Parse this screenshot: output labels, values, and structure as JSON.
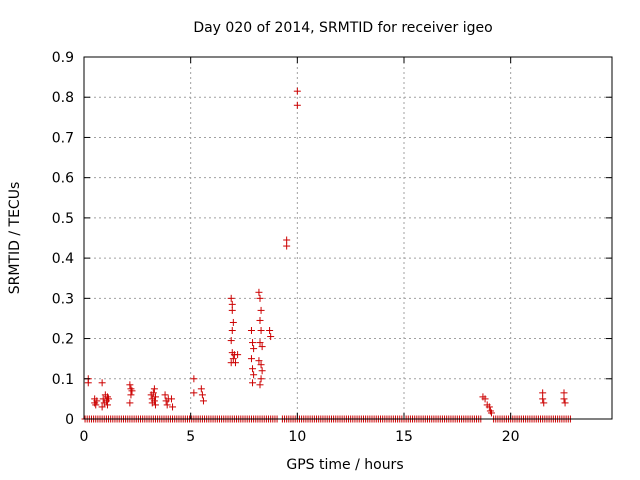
{
  "chart_data": {
    "type": "scatter",
    "title": "Day 020 of 2014, SRMTID for receiver igeo",
    "xlabel": "GPS time / hours",
    "ylabel": "SRMTID / TECUs",
    "xlim": [
      0,
      24.75
    ],
    "ylim": [
      0,
      0.9
    ],
    "xticks": [
      0,
      5,
      10,
      15,
      20
    ],
    "xtick_labels": [
      "0",
      "5",
      "10",
      "15",
      "20"
    ],
    "yticks": [
      0,
      0.1,
      0.2,
      0.3,
      0.4,
      0.5,
      0.6,
      0.7,
      0.8,
      0.9
    ],
    "ytick_labels": [
      "0",
      "0.1",
      "0.2",
      "0.3",
      "0.4",
      "0.5",
      "0.6",
      "0.7",
      "0.8",
      "0.9"
    ],
    "grid": true,
    "marker": "+",
    "color": "#cc0000",
    "zero_baseline_ranges": [
      [
        0.05,
        9.1
      ],
      [
        9.3,
        18.6
      ],
      [
        19.2,
        22.8
      ]
    ],
    "zero_baseline_step": 0.1,
    "series": [
      {
        "name": "SRMTID",
        "points": [
          [
            0.2,
            0.1
          ],
          [
            0.2,
            0.09
          ],
          [
            0.5,
            0.05
          ],
          [
            0.5,
            0.04
          ],
          [
            0.55,
            0.035
          ],
          [
            0.6,
            0.045
          ],
          [
            0.85,
            0.09
          ],
          [
            0.85,
            0.03
          ],
          [
            0.9,
            0.05
          ],
          [
            0.95,
            0.04
          ],
          [
            1.0,
            0.06
          ],
          [
            1.05,
            0.045
          ],
          [
            1.1,
            0.055
          ],
          [
            1.1,
            0.035
          ],
          [
            1.15,
            0.05
          ],
          [
            2.15,
            0.085
          ],
          [
            2.15,
            0.04
          ],
          [
            2.2,
            0.075
          ],
          [
            2.2,
            0.06
          ],
          [
            2.25,
            0.07
          ],
          [
            3.15,
            0.06
          ],
          [
            3.2,
            0.05
          ],
          [
            3.2,
            0.04
          ],
          [
            3.25,
            0.065
          ],
          [
            3.3,
            0.045
          ],
          [
            3.3,
            0.075
          ],
          [
            3.35,
            0.055
          ],
          [
            3.35,
            0.035
          ],
          [
            3.8,
            0.06
          ],
          [
            3.85,
            0.045
          ],
          [
            3.9,
            0.035
          ],
          [
            3.95,
            0.05
          ],
          [
            4.1,
            0.05
          ],
          [
            4.15,
            0.03
          ],
          [
            5.15,
            0.1
          ],
          [
            5.15,
            0.065
          ],
          [
            5.5,
            0.075
          ],
          [
            5.55,
            0.06
          ],
          [
            5.6,
            0.045
          ],
          [
            6.9,
            0.3
          ],
          [
            6.95,
            0.285
          ],
          [
            6.95,
            0.27
          ],
          [
            7.0,
            0.24
          ],
          [
            6.95,
            0.22
          ],
          [
            6.9,
            0.195
          ],
          [
            6.95,
            0.165
          ],
          [
            7.0,
            0.15
          ],
          [
            6.9,
            0.14
          ],
          [
            7.05,
            0.16
          ],
          [
            7.1,
            0.14
          ],
          [
            7.2,
            0.16
          ],
          [
            7.85,
            0.22
          ],
          [
            7.9,
            0.19
          ],
          [
            7.95,
            0.175
          ],
          [
            7.85,
            0.15
          ],
          [
            7.9,
            0.125
          ],
          [
            7.95,
            0.11
          ],
          [
            7.9,
            0.09
          ],
          [
            8.2,
            0.315
          ],
          [
            8.25,
            0.3
          ],
          [
            8.3,
            0.27
          ],
          [
            8.25,
            0.245
          ],
          [
            8.3,
            0.22
          ],
          [
            8.25,
            0.19
          ],
          [
            8.35,
            0.18
          ],
          [
            8.2,
            0.145
          ],
          [
            8.3,
            0.135
          ],
          [
            8.35,
            0.12
          ],
          [
            8.3,
            0.1
          ],
          [
            8.25,
            0.085
          ],
          [
            8.7,
            0.22
          ],
          [
            8.75,
            0.205
          ],
          [
            9.5,
            0.445
          ],
          [
            9.5,
            0.43
          ],
          [
            10.0,
            0.815
          ],
          [
            10.0,
            0.78
          ],
          [
            18.7,
            0.055
          ],
          [
            18.8,
            0.05
          ],
          [
            18.9,
            0.035
          ],
          [
            19.0,
            0.03
          ],
          [
            19.05,
            0.02
          ],
          [
            19.1,
            0.015
          ],
          [
            21.5,
            0.065
          ],
          [
            21.5,
            0.05
          ],
          [
            21.55,
            0.04
          ],
          [
            22.5,
            0.065
          ],
          [
            22.5,
            0.05
          ],
          [
            22.55,
            0.04
          ]
        ]
      }
    ]
  }
}
